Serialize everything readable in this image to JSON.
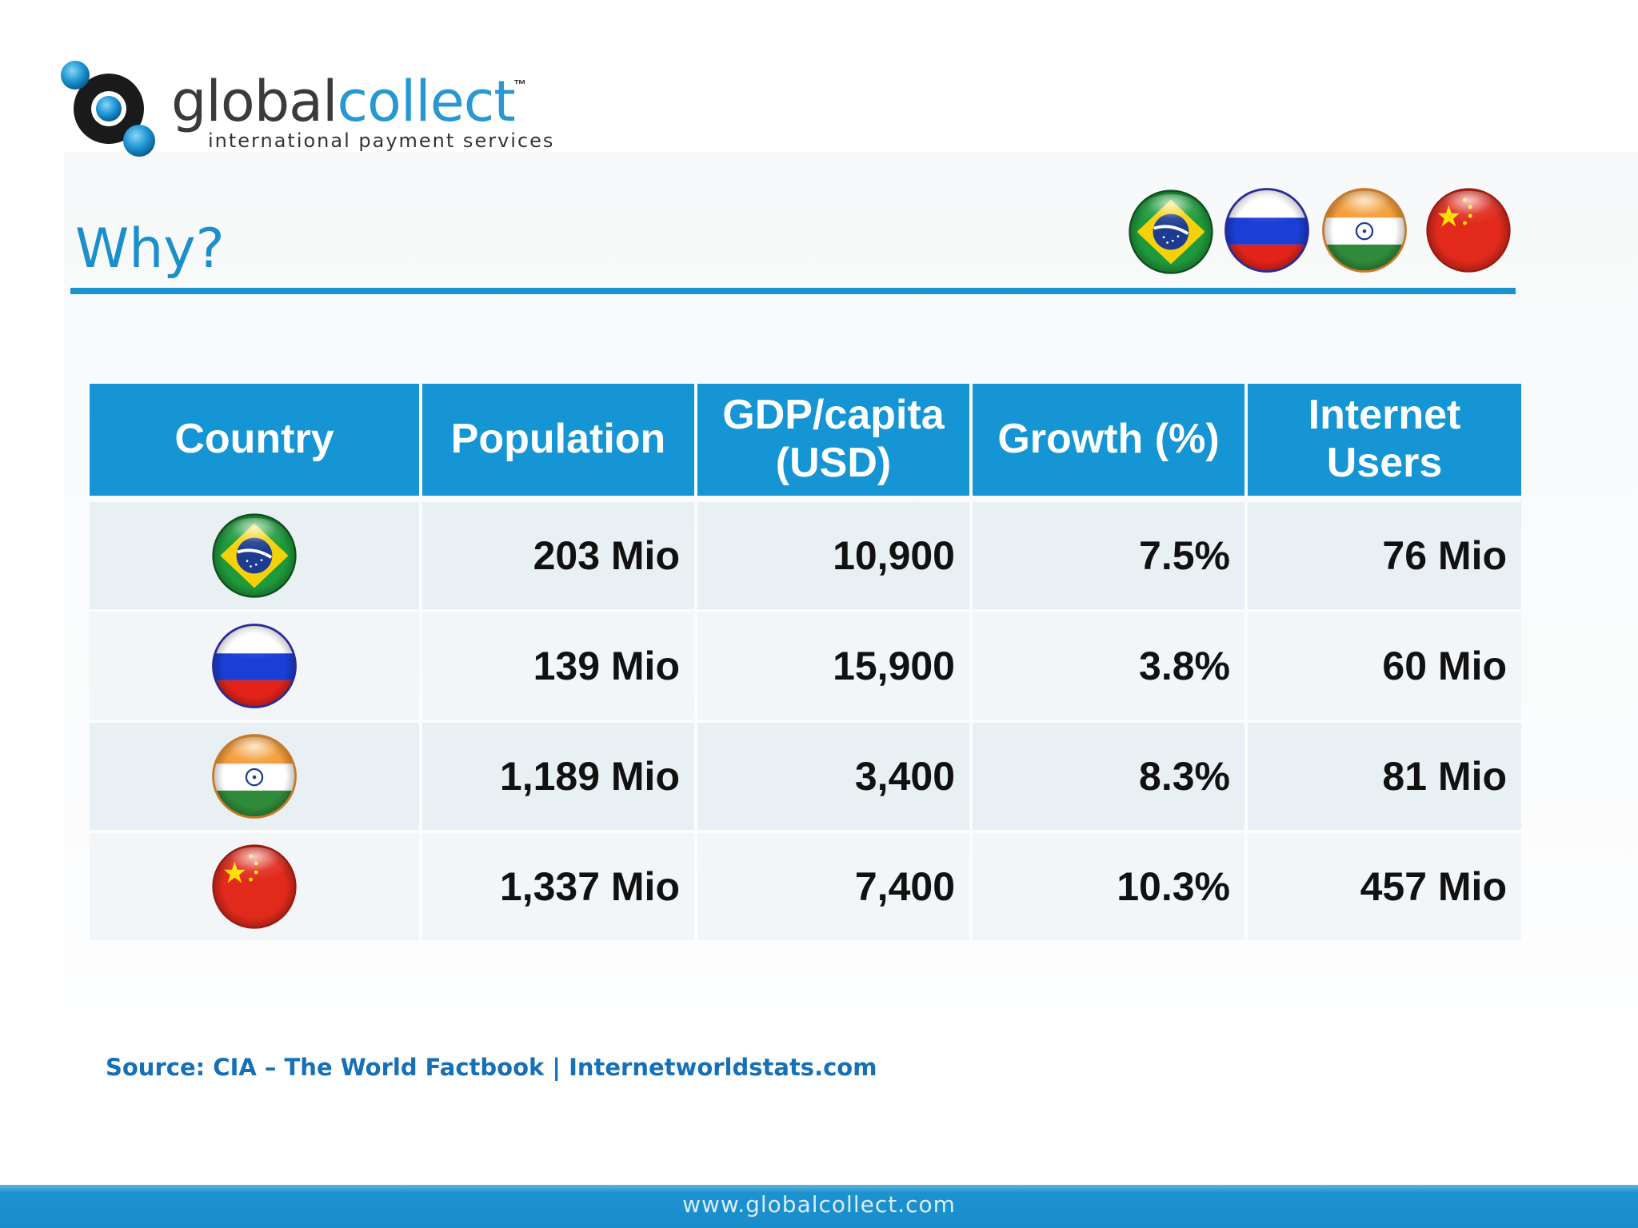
{
  "logo": {
    "word_part1": "global",
    "word_part2": "collect",
    "trademark": "™",
    "tagline": "international payment services"
  },
  "title": "Why?",
  "header_flags": [
    "brazil-flag-icon",
    "russia-flag-icon",
    "india-flag-icon",
    "china-flag-icon"
  ],
  "table": {
    "headers": [
      "Country",
      "Population",
      "GDP/capita (USD)",
      "Growth (%)",
      "Internet Users"
    ],
    "rows": [
      {
        "country_icon": "brazil-flag-icon",
        "population": "203 Mio",
        "gdp": "10,900",
        "growth": "7.5%",
        "internet": "76 Mio"
      },
      {
        "country_icon": "russia-flag-icon",
        "population": "139 Mio",
        "gdp": "15,900",
        "growth": "3.8%",
        "internet": "60 Mio"
      },
      {
        "country_icon": "india-flag-icon",
        "population": "1,189 Mio",
        "gdp": "3,400",
        "growth": "8.3%",
        "internet": "81 Mio"
      },
      {
        "country_icon": "china-flag-icon",
        "population": "1,337 Mio",
        "gdp": "7,400",
        "growth": "10.3%",
        "internet": "457 Mio"
      }
    ]
  },
  "source": "Source: CIA – The World Factbook |  Internetworldstats.com",
  "footer": "www.globalcollect.com",
  "colors": {
    "accent": "#1595d3",
    "title": "#1c8fcb",
    "source": "#1570b8",
    "row_odd": "#e8f0f3",
    "row_even": "#f2f6f8"
  }
}
